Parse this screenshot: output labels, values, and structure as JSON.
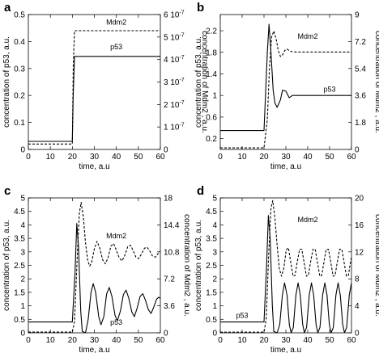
{
  "chart_data": [
    {
      "type": "line",
      "panel": "a",
      "xlabel": "time, a.u",
      "ylabel": "concentration of p53, a.u.",
      "ylabel_right": "concentration of Mdm2 , a.u.",
      "xlim": [
        0,
        60
      ],
      "ylim": [
        0,
        0.5
      ],
      "ylim_right": [
        0,
        6e-07
      ],
      "x_ticks": [
        "0",
        "10",
        "20",
        "30",
        "40",
        "50",
        "60"
      ],
      "y_ticks": [
        "0",
        "0.1",
        "0.2",
        "0.3",
        "0.4",
        "0.5"
      ],
      "y_ticks_right": [
        "0",
        "1 10-7",
        "2 10-7",
        "3 10-7",
        "4 10-7",
        "5 10-7",
        "6 10-7"
      ],
      "series": [
        {
          "name": "p53",
          "style": "solid",
          "axis": "left",
          "points": [
            [
              0,
              0.03
            ],
            [
              20,
              0.03
            ],
            [
              20.4,
              0.2
            ],
            [
              21,
              0.345
            ],
            [
              60,
              0.345
            ]
          ]
        },
        {
          "name": "Mdm2",
          "style": "dashed",
          "axis": "left",
          "points": [
            [
              0,
              0.02
            ],
            [
              20,
              0.02
            ],
            [
              20.4,
              0.3
            ],
            [
              21,
              0.44
            ],
            [
              60,
              0.44
            ]
          ]
        }
      ]
    },
    {
      "type": "line",
      "panel": "b",
      "xlabel": "time, a.u",
      "ylabel": "concentration of p53, a.u.",
      "ylabel_right": "concentration of Mdm2 , a.u.",
      "xlim": [
        0,
        60
      ],
      "ylim": [
        0,
        2.5
      ],
      "ylim_right": [
        0,
        9
      ],
      "x_ticks": [
        "0",
        "10",
        "20",
        "30",
        "40",
        "50",
        "60"
      ],
      "y_ticks": [
        "0.2",
        "0.6",
        "1",
        "1.4",
        "1.8",
        "2.2"
      ],
      "y_ticks_right": [
        "0",
        "1.8",
        "3.6",
        "5.4",
        "7.2",
        "9"
      ],
      "series": [
        {
          "name": "p53",
          "style": "solid",
          "axis": "left",
          "points": [
            [
              0,
              0.35
            ],
            [
              20,
              0.35
            ],
            [
              21.5,
              1.8
            ],
            [
              22.3,
              2.32
            ],
            [
              23.2,
              1.8
            ],
            [
              24.2,
              1.1
            ],
            [
              25,
              0.86
            ],
            [
              26,
              0.78
            ],
            [
              27.5,
              0.92
            ],
            [
              28.5,
              1.1
            ],
            [
              30,
              1.08
            ],
            [
              31.5,
              0.96
            ],
            [
              33,
              1.0
            ],
            [
              60,
              1.0
            ]
          ]
        },
        {
          "name": "Mdm2",
          "style": "dashed",
          "axis": "right",
          "points": [
            [
              0,
              0.1
            ],
            [
              20,
              0.1
            ],
            [
              21.5,
              2
            ],
            [
              22.5,
              5.5
            ],
            [
              23.5,
              7.5
            ],
            [
              24.5,
              7.9
            ],
            [
              25.5,
              7.4
            ],
            [
              26.5,
              6.6
            ],
            [
              27.5,
              6.2
            ],
            [
              28.5,
              6.3
            ],
            [
              29.5,
              6.6
            ],
            [
              30.5,
              6.7
            ],
            [
              32,
              6.55
            ],
            [
              34,
              6.5
            ],
            [
              60,
              6.5
            ]
          ]
        }
      ]
    },
    {
      "type": "line",
      "panel": "c",
      "xlabel": "time, a.u",
      "ylabel": "concentration of p53, a.u.",
      "ylabel_right": "concentration of Mdm2 , a.u.",
      "xlim": [
        0,
        60
      ],
      "ylim": [
        0,
        5
      ],
      "ylim_right": [
        0,
        18
      ],
      "x_ticks": [
        "0",
        "10",
        "20",
        "30",
        "40",
        "50",
        "60"
      ],
      "y_ticks": [
        "0",
        "0.5",
        "1",
        "1.5",
        "2",
        "2.5",
        "3",
        "3.5",
        "4",
        "4.5",
        "5"
      ],
      "y_ticks_right": [
        "0",
        "3.6",
        "7.2",
        "10.8",
        "14.4",
        "18"
      ],
      "series": [
        {
          "name": "p53",
          "style": "solid",
          "axis": "left",
          "points": [
            [
              0,
              0.4
            ],
            [
              20,
              0.4
            ],
            [
              21.2,
              2.2
            ],
            [
              22,
              4.05
            ],
            [
              22.8,
              3.2
            ],
            [
              23.8,
              0.8
            ],
            [
              24.5,
              0.05
            ],
            [
              26,
              0.0
            ],
            [
              27.2,
              0.5
            ],
            [
              28.5,
              1.5
            ],
            [
              29.5,
              1.82
            ],
            [
              30.6,
              1.5
            ],
            [
              32,
              0.6
            ],
            [
              33,
              0.3
            ],
            [
              34.3,
              0.6
            ],
            [
              35.6,
              1.45
            ],
            [
              36.8,
              1.68
            ],
            [
              38,
              1.35
            ],
            [
              39.4,
              0.65
            ],
            [
              40.5,
              0.45
            ],
            [
              41.8,
              0.8
            ],
            [
              43.2,
              1.42
            ],
            [
              44.4,
              1.58
            ],
            [
              45.6,
              1.3
            ],
            [
              47,
              0.78
            ],
            [
              48.2,
              0.6
            ],
            [
              49.4,
              0.9
            ],
            [
              50.8,
              1.35
            ],
            [
              52,
              1.45
            ],
            [
              53.2,
              1.22
            ],
            [
              54.6,
              0.85
            ],
            [
              55.8,
              0.72
            ],
            [
              57,
              0.95
            ],
            [
              58.3,
              1.25
            ],
            [
              59.3,
              1.32
            ],
            [
              60,
              1.27
            ]
          ]
        },
        {
          "name": "Mdm2",
          "style": "dashed",
          "axis": "right",
          "points": [
            [
              0,
              0.1
            ],
            [
              20,
              0.1
            ],
            [
              21,
              1.5
            ],
            [
              22.2,
              10
            ],
            [
              23.2,
              16
            ],
            [
              24,
              17.4
            ],
            [
              25,
              15.5
            ],
            [
              26,
              12
            ],
            [
              27,
              9.6
            ],
            [
              27.9,
              8.9
            ],
            [
              28.8,
              9.4
            ],
            [
              30,
              11.2
            ],
            [
              31.2,
              12.2
            ],
            [
              32.5,
              11.3
            ],
            [
              33.8,
              9.7
            ],
            [
              35,
              9.2
            ],
            [
              36.2,
              10
            ],
            [
              37.6,
              11.6
            ],
            [
              38.8,
              11.9
            ],
            [
              40,
              11
            ],
            [
              41.3,
              10
            ],
            [
              42.6,
              9.6
            ],
            [
              43.8,
              10.3
            ],
            [
              45.2,
              11.5
            ],
            [
              46.4,
              11.7
            ],
            [
              47.6,
              11
            ],
            [
              48.9,
              10.1
            ],
            [
              50.2,
              9.9
            ],
            [
              51.4,
              10.5
            ],
            [
              52.8,
              11.3
            ],
            [
              54,
              11.4
            ],
            [
              55.2,
              10.9
            ],
            [
              56.5,
              10.2
            ],
            [
              57.8,
              10.1
            ],
            [
              59,
              10.6
            ],
            [
              60,
              10.9
            ]
          ]
        }
      ]
    },
    {
      "type": "line",
      "panel": "d",
      "xlabel": "time, a.u",
      "ylabel": "concentration of p53, a.u.",
      "ylabel_right": "concentration of Mdm2 , a.u.",
      "xlim": [
        0,
        60
      ],
      "ylim": [
        0,
        5
      ],
      "ylim_right": [
        0,
        20
      ],
      "x_ticks": [
        "0",
        "10",
        "20",
        "30",
        "40",
        "50",
        "60"
      ],
      "y_ticks": [
        "0",
        "0.5",
        "1",
        "1.5",
        "2",
        "2.5",
        "3",
        "3.5",
        "4",
        "4.5",
        "5"
      ],
      "y_ticks_right": [
        "0",
        "4",
        "8",
        "12",
        "16",
        "20"
      ],
      "series": [
        {
          "name": "p53",
          "style": "solid",
          "axis": "left",
          "points": [
            [
              0,
              0.4
            ],
            [
              20,
              0.4
            ],
            [
              21.2,
              2.5
            ],
            [
              22,
              4.35
            ],
            [
              22.8,
              3.5
            ],
            [
              23.8,
              1
            ],
            [
              24.5,
              0.05
            ],
            [
              26,
              0.0
            ],
            [
              27.2,
              0.3
            ],
            [
              28.4,
              1.4
            ],
            [
              29.4,
              1.85
            ],
            [
              30.5,
              1.4
            ],
            [
              31.6,
              0.3
            ],
            [
              32.4,
              0.0
            ],
            [
              33.4,
              0.2
            ],
            [
              34.6,
              1.4
            ],
            [
              35.6,
              1.85
            ],
            [
              36.6,
              1.4
            ],
            [
              37.7,
              0.3
            ],
            [
              38.5,
              0.0
            ],
            [
              39.5,
              0.2
            ],
            [
              40.7,
              1.4
            ],
            [
              41.7,
              1.85
            ],
            [
              42.7,
              1.4
            ],
            [
              43.8,
              0.3
            ],
            [
              44.6,
              0.0
            ],
            [
              45.6,
              0.2
            ],
            [
              46.8,
              1.4
            ],
            [
              47.8,
              1.85
            ],
            [
              48.8,
              1.4
            ],
            [
              49.9,
              0.3
            ],
            [
              50.7,
              0.0
            ],
            [
              51.7,
              0.2
            ],
            [
              52.9,
              1.4
            ],
            [
              53.9,
              1.85
            ],
            [
              54.9,
              1.4
            ],
            [
              56,
              0.3
            ],
            [
              56.8,
              0.0
            ],
            [
              57.8,
              0.2
            ],
            [
              59,
              1.4
            ],
            [
              60,
              1.85
            ]
          ]
        },
        {
          "name": "Mdm2",
          "style": "dashed",
          "axis": "right",
          "points": [
            [
              0,
              0.1
            ],
            [
              20,
              0.1
            ],
            [
              21,
              2
            ],
            [
              22.2,
              12
            ],
            [
              23.2,
              18.5
            ],
            [
              24,
              19.6
            ],
            [
              25,
              17
            ],
            [
              26,
              13
            ],
            [
              27,
              9.5
            ],
            [
              28,
              8.4
            ],
            [
              29,
              9.5
            ],
            [
              30.2,
              12.3
            ],
            [
              31.2,
              12.6
            ],
            [
              32.2,
              10.5
            ],
            [
              33.3,
              8.4
            ],
            [
              34.2,
              8.5
            ],
            [
              35.2,
              10.5
            ],
            [
              36.3,
              12.4
            ],
            [
              37.3,
              12.4
            ],
            [
              38.3,
              10.5
            ],
            [
              39.4,
              8.4
            ],
            [
              40.3,
              8.5
            ],
            [
              41.3,
              10.5
            ],
            [
              42.4,
              12.4
            ],
            [
              43.4,
              12.4
            ],
            [
              44.4,
              10.5
            ],
            [
              45.5,
              8.4
            ],
            [
              46.4,
              8.5
            ],
            [
              47.4,
              10.5
            ],
            [
              48.5,
              12.4
            ],
            [
              49.5,
              12.4
            ],
            [
              50.5,
              10.5
            ],
            [
              51.6,
              8.4
            ],
            [
              52.5,
              8.5
            ],
            [
              53.5,
              10.5
            ],
            [
              54.6,
              12.4
            ],
            [
              55.6,
              12.4
            ],
            [
              56.6,
              10.5
            ],
            [
              57.7,
              8.4
            ],
            [
              58.6,
              8.5
            ],
            [
              59.4,
              10.2
            ],
            [
              60,
              11.2
            ]
          ]
        }
      ]
    }
  ],
  "panels": [
    {
      "letter": "a",
      "labels": [
        {
          "text": "Mdm2",
          "x": 40,
          "y": 0.462
        },
        {
          "text": "p53",
          "x": 40,
          "y": 0.372
        }
      ]
    },
    {
      "letter": "b",
      "labels": [
        {
          "text": "Mdm2",
          "x": 40,
          "y": 2.05
        },
        {
          "text": "p53",
          "x": 50,
          "y": 1.07
        }
      ]
    },
    {
      "letter": "c",
      "labels": [
        {
          "text": "Mdm2",
          "x": 40,
          "y": 3.5
        },
        {
          "text": "p53",
          "x": 40,
          "y": 0.3
        }
      ]
    },
    {
      "letter": "d",
      "labels": [
        {
          "text": "Mdm2",
          "x": 40,
          "y": 4.1
        },
        {
          "text": "p53",
          "x": 10,
          "y": 0.55
        }
      ]
    }
  ]
}
